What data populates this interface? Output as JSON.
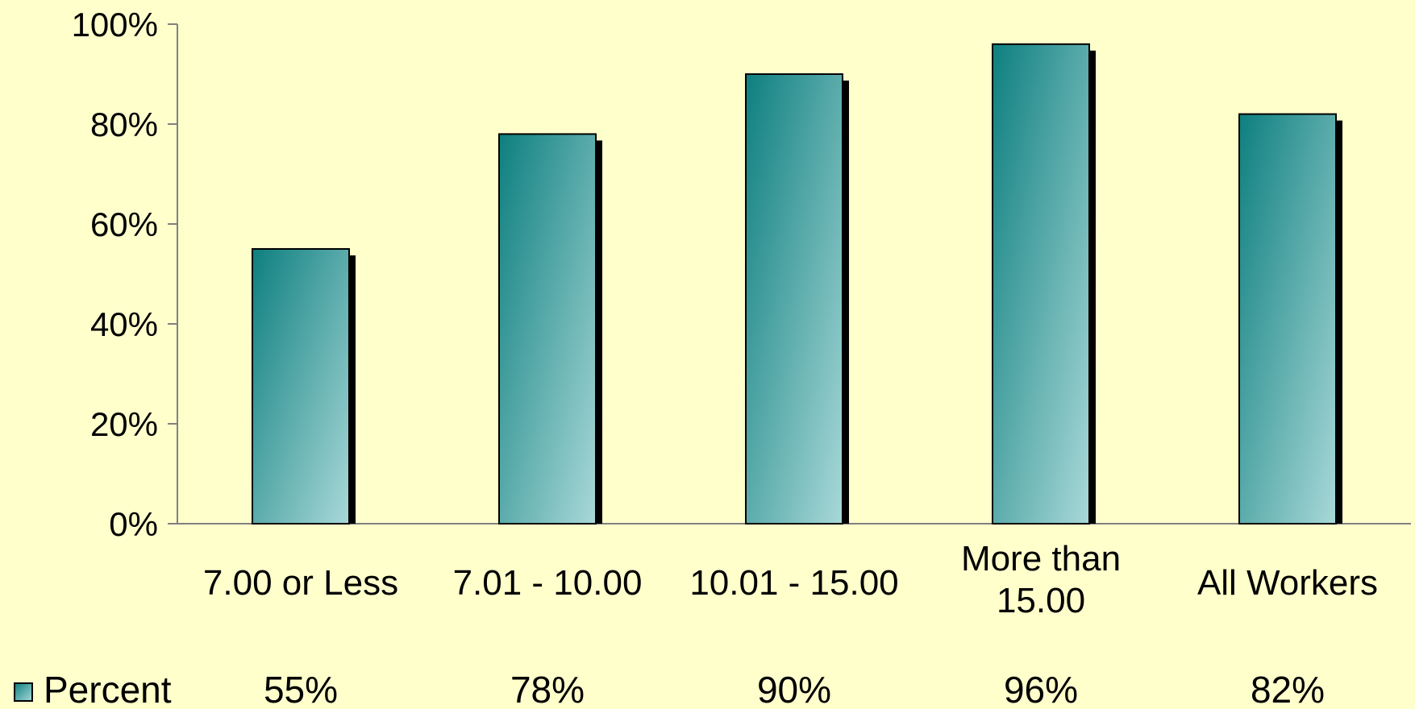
{
  "chart_data": {
    "type": "bar",
    "title": "",
    "xlabel": "",
    "ylabel": "",
    "categories": [
      [
        "7.00 or Less"
      ],
      [
        "7.01 - 10.00"
      ],
      [
        "10.01 - 15.00"
      ],
      [
        "More than",
        "15.00"
      ],
      [
        "All Workers"
      ]
    ],
    "series": [
      {
        "name": "Percent",
        "values": [
          55,
          78,
          90,
          96,
          82
        ],
        "labels": [
          "55%",
          "78%",
          "90%",
          "96%",
          "82%"
        ]
      }
    ],
    "ylim": [
      0,
      100
    ],
    "yticks": [
      0,
      20,
      40,
      60,
      80,
      100
    ],
    "ytick_labels": [
      "0%",
      "20%",
      "40%",
      "60%",
      "80%",
      "100%"
    ],
    "grid": false,
    "legend": "data-table-left"
  },
  "colors": {
    "background": "#ffffcc",
    "bar_dark": "#0e7f7f",
    "bar_light": "#a9d8d8",
    "shadow": "#000000",
    "axis": "#808080"
  }
}
